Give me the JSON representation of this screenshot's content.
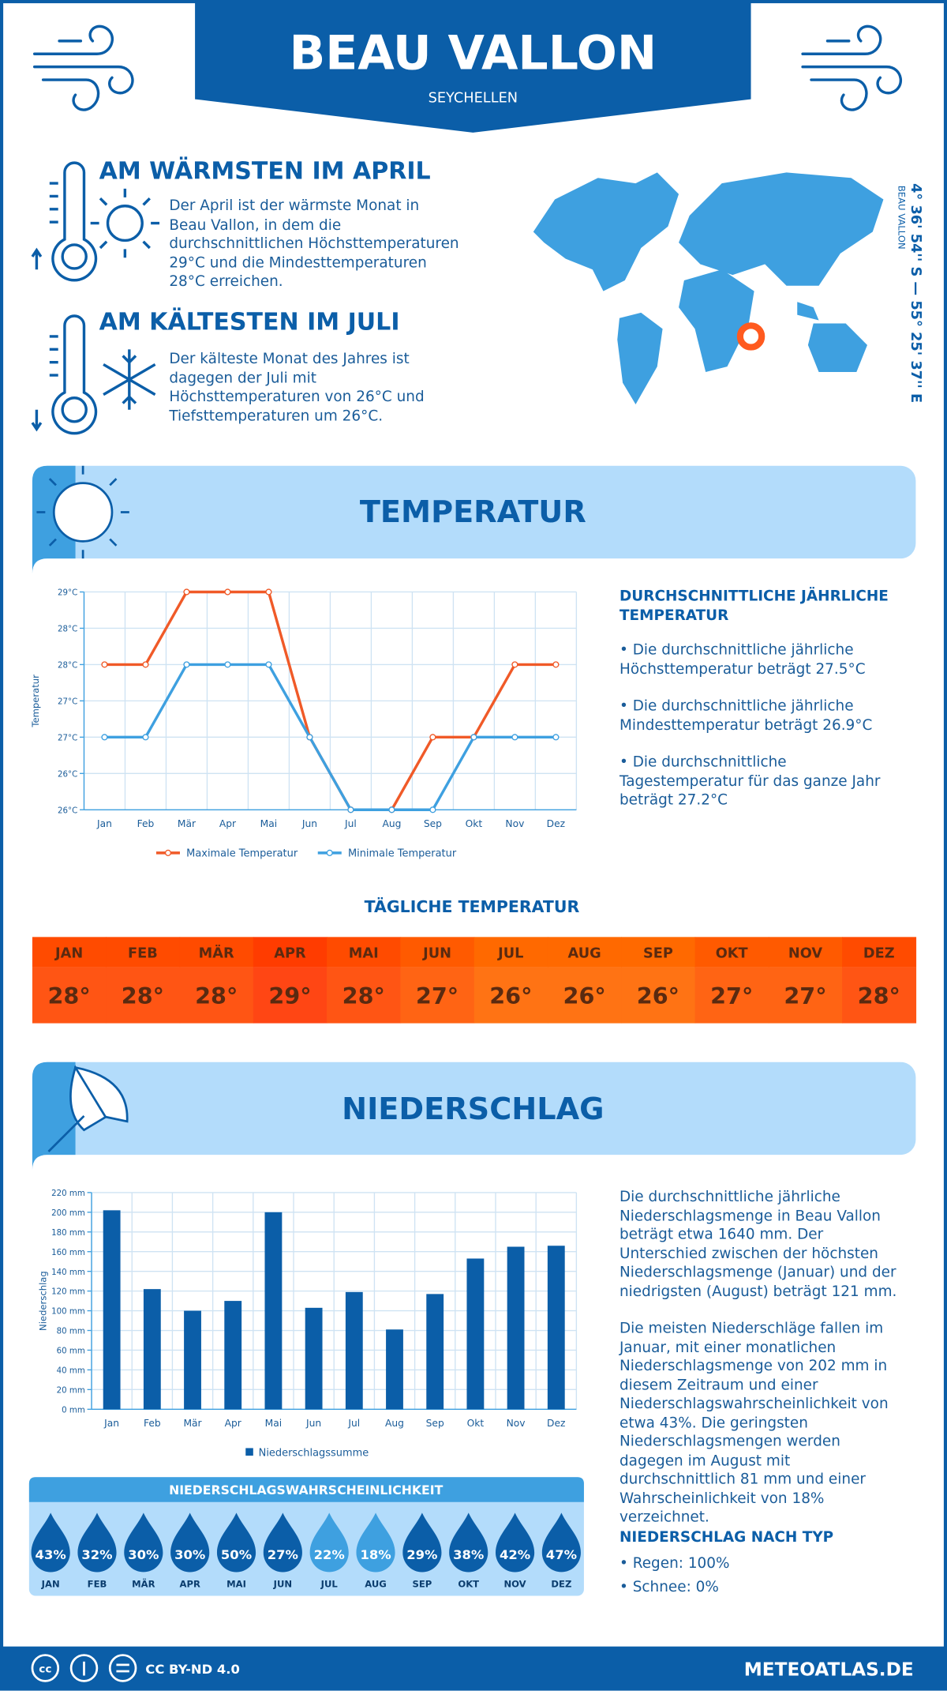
{
  "header": {
    "title": "BEAU VALLON",
    "subtitle": "SEYCHELLEN"
  },
  "location": {
    "name": "BEAU VALLON",
    "coords": "4° 36' 54'' S — 55° 25' 37'' E"
  },
  "highlights": [
    {
      "title": "AM WÄRMSTEN IM APRIL",
      "text": "Der April ist der wärmste Monat in Beau Vallon, in dem die durchschnittlichen Höchsttemperaturen 29°C und die Mindesttemperaturen 28°C erreichen."
    },
    {
      "title": "AM KÄLTESTEN IM JULI",
      "text": "Der kälteste Monat des Jahres ist dagegen der Juli mit Höchsttemperaturen von 26°C und Tiefsttemperaturen um 26°C."
    }
  ],
  "temperature": {
    "heading": "TEMPERATUR",
    "summary_title": "DURCHSCHNITTLICHE JÄHRLICHE TEMPERATUR",
    "summary_items": [
      "• Die durchschnittliche jährliche Höchsttemperatur beträgt 27.5°C",
      "• Die durchschnittliche jährliche Mindesttemperatur beträgt 26.9°C",
      "• Die durchschnittliche Tagestemperatur für das ganze Jahr beträgt 27.2°C"
    ]
  },
  "daily_temperature": {
    "title": "TÄGLICHE TEMPERATUR",
    "months": [
      "JAN",
      "FEB",
      "MÄR",
      "APR",
      "MAI",
      "JUN",
      "JUL",
      "AUG",
      "SEP",
      "OKT",
      "NOV",
      "DEZ"
    ],
    "values": [
      28,
      28,
      28,
      29,
      28,
      27,
      26,
      26,
      26,
      27,
      27,
      28
    ],
    "value_labels": [
      "28°",
      "28°",
      "28°",
      "29°",
      "28°",
      "27°",
      "26°",
      "26°",
      "26°",
      "27°",
      "27°",
      "28°"
    ]
  },
  "precipitation": {
    "heading": "NIEDERSCHLAG",
    "paragraphs": [
      "Die durchschnittliche jährliche Niederschlagsmenge in Beau Vallon beträgt etwa 1640 mm. Der Unterschied zwischen der höchsten Niederschlagsmenge (Januar) und der niedrigsten (August) beträgt 121 mm.",
      "Die meisten Niederschläge fallen im Januar, mit einer monatlichen Niederschlagsmenge von 202 mm in diesem Zeitraum und einer Niederschlagswahrscheinlichkeit von etwa 43%. Die geringsten Niederschlagsmengen werden dagegen im August mit durchschnittlich 81 mm und einer Wahrscheinlichkeit von 18% verzeichnet."
    ],
    "type_title": "NIEDERSCHLAG NACH TYP",
    "type_items": [
      "• Regen: 100%",
      "• Schnee: 0%"
    ]
  },
  "probability": {
    "title": "NIEDERSCHLAGSWAHRSCHEINLICHKEIT",
    "months": [
      "JAN",
      "FEB",
      "MÄR",
      "APR",
      "MAI",
      "JUN",
      "JUL",
      "AUG",
      "SEP",
      "OKT",
      "NOV",
      "DEZ"
    ],
    "values": [
      43,
      32,
      30,
      30,
      50,
      27,
      22,
      18,
      29,
      38,
      42,
      47
    ],
    "value_labels": [
      "43%",
      "32%",
      "30%",
      "30%",
      "50%",
      "27%",
      "22%",
      "18%",
      "29%",
      "38%",
      "42%",
      "47%"
    ]
  },
  "footer": {
    "license": "CC BY-ND 4.0",
    "site": "METEOATLAS.DE"
  },
  "chart_data": [
    {
      "type": "line",
      "y_label": "Temperatur",
      "categories": [
        "Jan",
        "Feb",
        "Mär",
        "Apr",
        "Mai",
        "Jun",
        "Jul",
        "Aug",
        "Sep",
        "Okt",
        "Nov",
        "Dez"
      ],
      "series": [
        {
          "name": "Maximale Temperatur",
          "color": "#f05a28",
          "values": [
            28,
            28,
            29,
            29,
            29,
            27,
            26,
            26,
            27,
            27,
            28,
            28
          ]
        },
        {
          "name": "Minimale Temperatur",
          "color": "#3ea0e0",
          "values": [
            27,
            27,
            28,
            28,
            28,
            27,
            26,
            26,
            26,
            27,
            27,
            27
          ]
        }
      ],
      "ylim": [
        26,
        29
      ],
      "yticks": [
        {
          "value": 26,
          "label": "26°C"
        },
        {
          "value": 26.5,
          "label": "26°C"
        },
        {
          "value": 27,
          "label": "27°C"
        },
        {
          "value": 27.5,
          "label": "27°C"
        },
        {
          "value": 28,
          "label": "28°C"
        },
        {
          "value": 28.5,
          "label": "28°C"
        },
        {
          "value": 29,
          "label": "29°C"
        }
      ],
      "grid": true
    },
    {
      "type": "bar",
      "y_label": "Niederschlag",
      "categories": [
        "Jan",
        "Feb",
        "Mär",
        "Apr",
        "Mai",
        "Jun",
        "Jul",
        "Aug",
        "Sep",
        "Okt",
        "Nov",
        "Dez"
      ],
      "series": [
        {
          "name": "Niederschlagssumme",
          "color": "#0b5ea8",
          "values": [
            202,
            122,
            100,
            110,
            200,
            103,
            119,
            81,
            117,
            153,
            165,
            166
          ]
        }
      ],
      "ylim": [
        0,
        220
      ],
      "yticks": [
        {
          "value": 0,
          "label": "0 mm"
        },
        {
          "value": 20,
          "label": "20 mm"
        },
        {
          "value": 40,
          "label": "40 mm"
        },
        {
          "value": 60,
          "label": "60 mm"
        },
        {
          "value": 80,
          "label": "80 mm"
        },
        {
          "value": 100,
          "label": "100 mm"
        },
        {
          "value": 120,
          "label": "120 mm"
        },
        {
          "value": 140,
          "label": "140 mm"
        },
        {
          "value": 160,
          "label": "160 mm"
        },
        {
          "value": 180,
          "label": "180 mm"
        },
        {
          "value": 200,
          "label": "200 mm"
        },
        {
          "value": 220,
          "label": "220 mm"
        }
      ],
      "grid": true
    }
  ]
}
